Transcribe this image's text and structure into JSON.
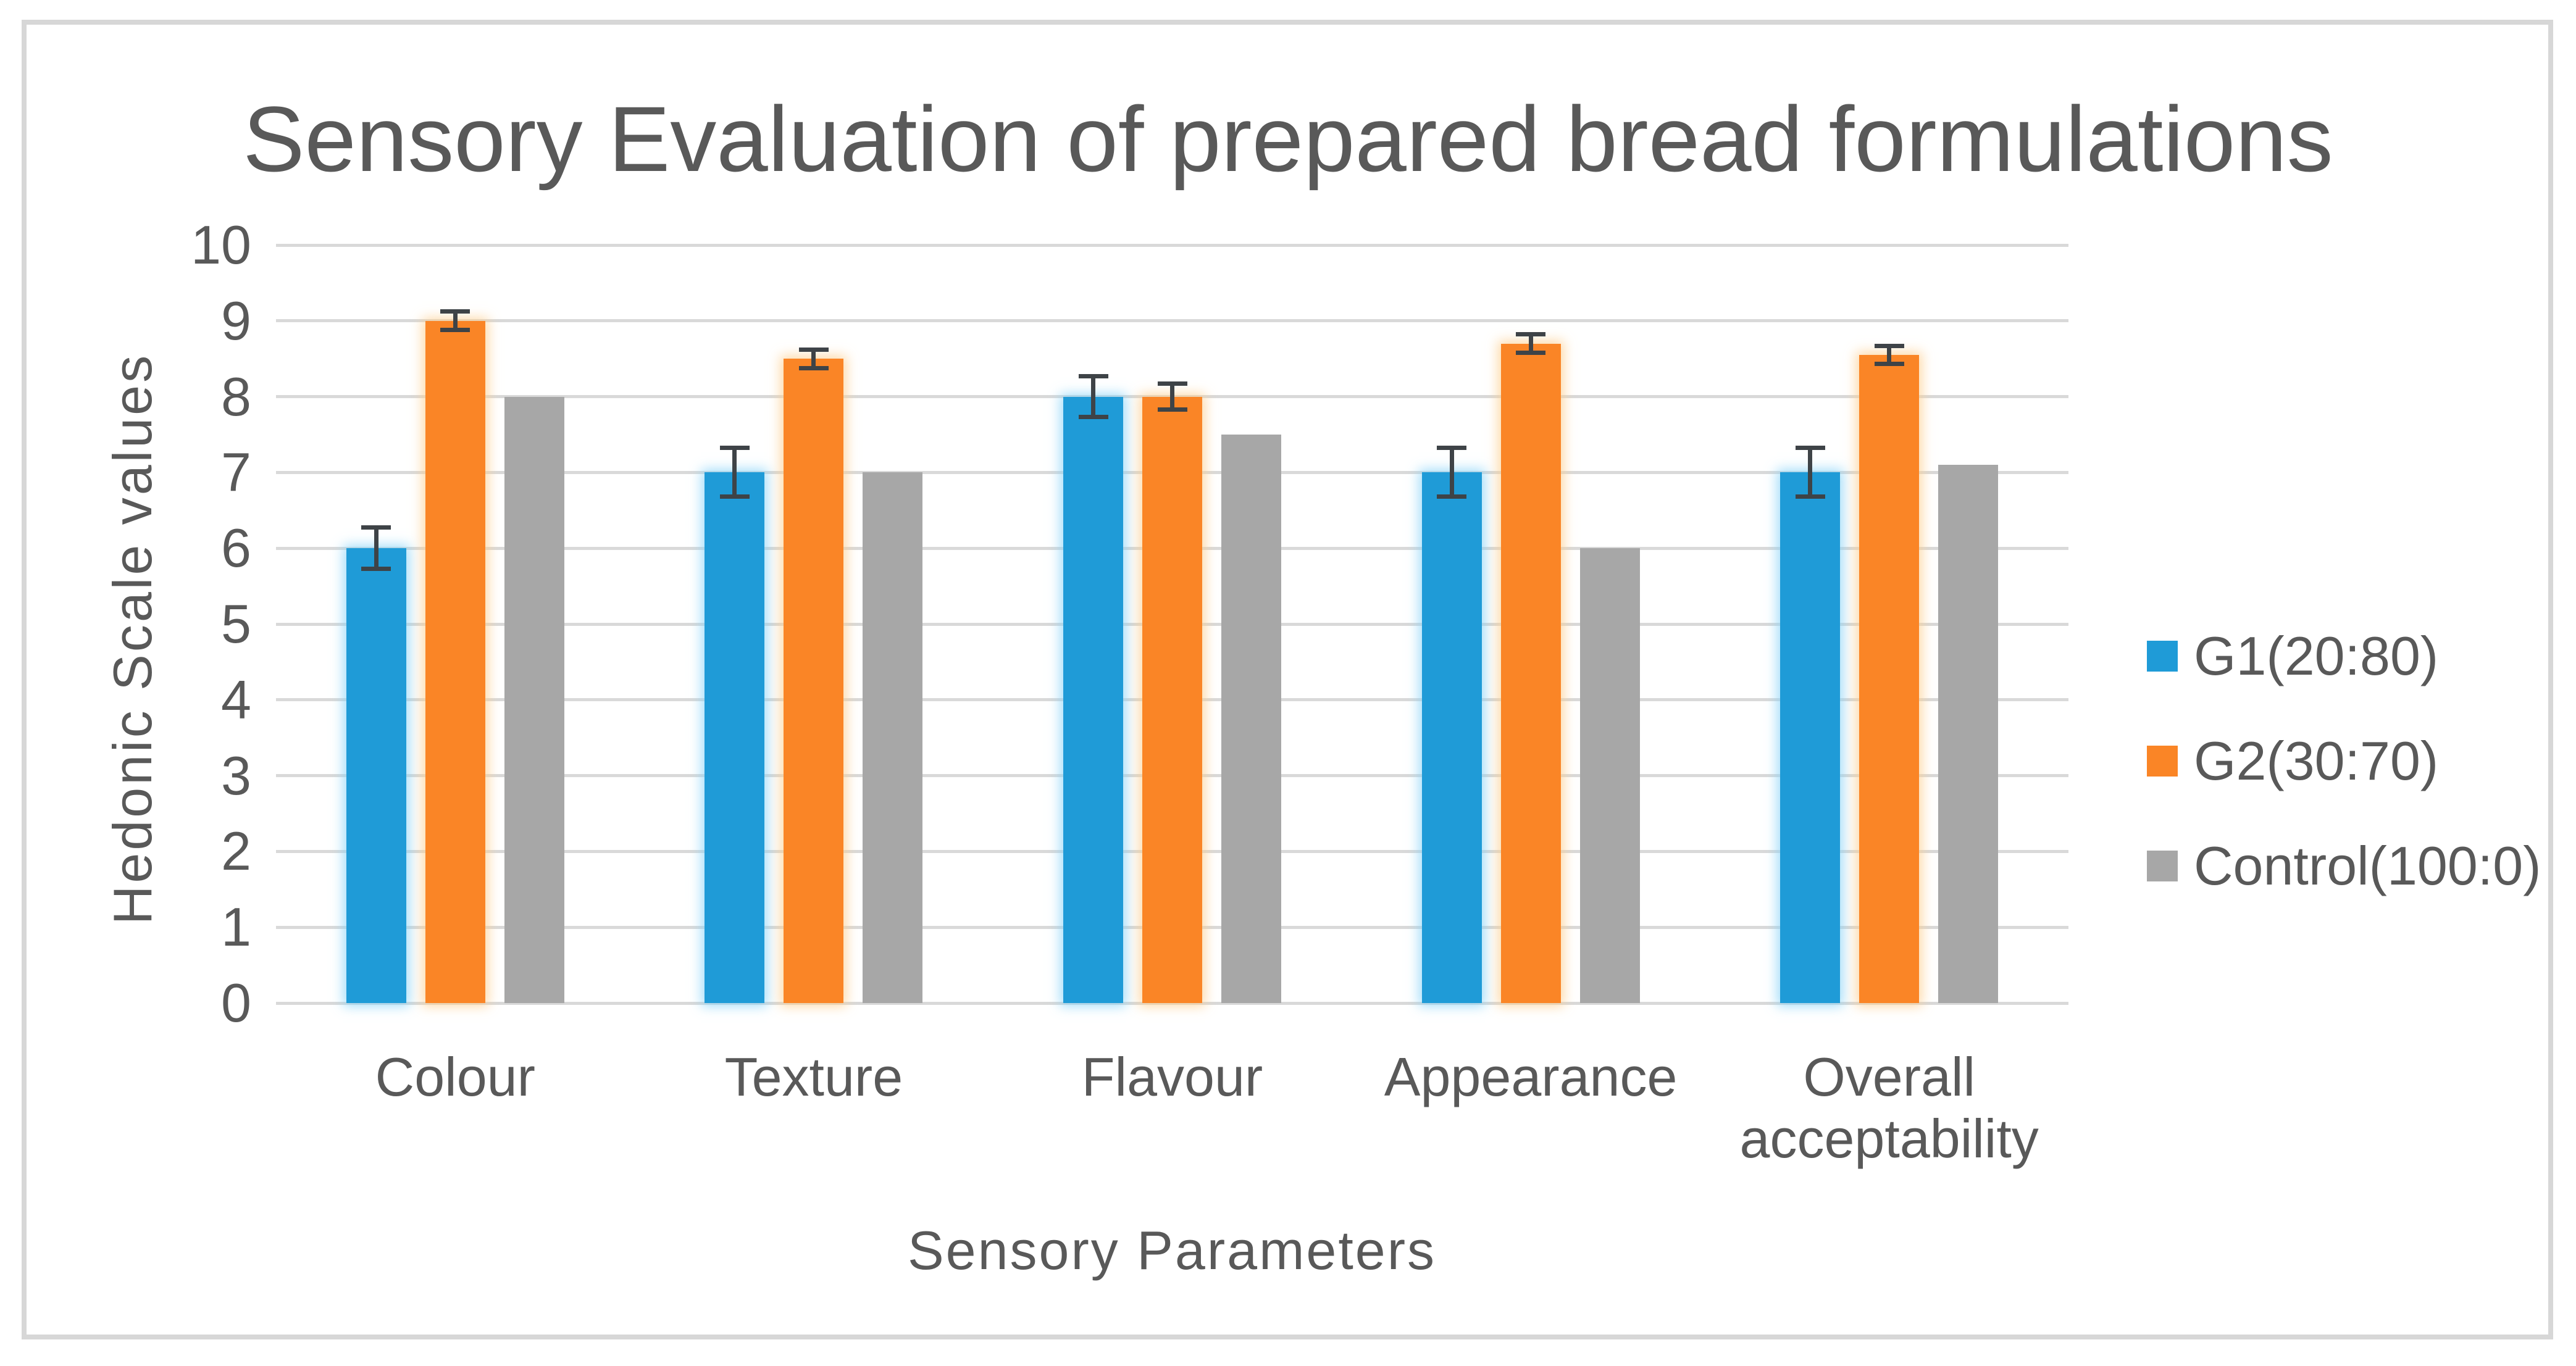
{
  "chart_data": {
    "type": "bar",
    "title": "Sensory Evaluation of prepared bread formulations",
    "xlabel": "Sensory Parameters",
    "ylabel": "Hedonic Scale values",
    "ylim": [
      0,
      10
    ],
    "yticks": [
      0,
      1,
      2,
      3,
      4,
      5,
      6,
      7,
      8,
      9,
      10
    ],
    "grid": true,
    "legend_position": "right",
    "categories": [
      "Colour",
      "Texture",
      "Flavour",
      "Appearance",
      "Overall acceptability"
    ],
    "series": [
      {
        "name": "G1(20:80)",
        "color": "#1f9bd7",
        "glow": "rgba(135,211,248,0.75)",
        "values": [
          6,
          7,
          8,
          7,
          7
        ],
        "errors": [
          0.3,
          0.35,
          0.3,
          0.35,
          0.35
        ]
      },
      {
        "name": "G2(30:70)",
        "color": "#fa8526",
        "glow": "rgba(253,205,140,0.75)",
        "values": [
          9,
          8.5,
          8,
          8.7,
          8.55
        ],
        "errors": [
          0.15,
          0.15,
          0.2,
          0.15,
          0.15
        ]
      },
      {
        "name": "Control(100:0)",
        "color": "#a7a7a7",
        "glow": "rgba(0,0,0,0)",
        "values": [
          8,
          7,
          7.5,
          6,
          7.1
        ],
        "errors": null
      }
    ],
    "colors": {
      "gridline": "#d9d9d9",
      "text": "#595959",
      "error_bar": "#3e4347",
      "frame_border": "#d7d7d7",
      "background": "#ffffff"
    }
  }
}
